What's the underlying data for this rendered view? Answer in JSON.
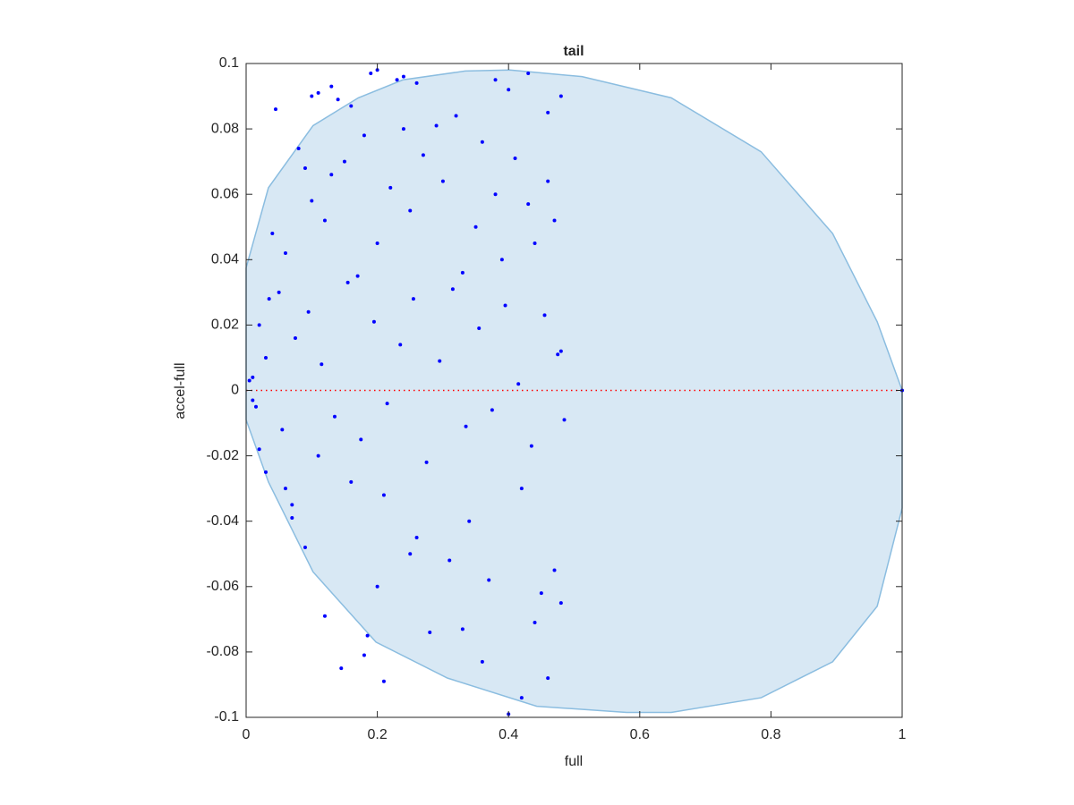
{
  "chart_data": {
    "type": "scatter",
    "title": "tail",
    "xlabel": "full",
    "ylabel": "accel-full",
    "xlim": [
      0,
      1
    ],
    "ylim": [
      -0.1,
      0.1
    ],
    "xticks": [
      0,
      0.2,
      0.4,
      0.6,
      0.8,
      1
    ],
    "yticks": [
      -0.1,
      -0.08,
      -0.06,
      -0.04,
      -0.02,
      0,
      0.02,
      0.04,
      0.06,
      0.08,
      0.1
    ],
    "grid": false,
    "region": {
      "color": "#d8e8f4",
      "edge": "#8bbde0",
      "x": [
        0,
        0.034,
        0.102,
        0.171,
        0.239,
        0.334,
        0.402,
        0.512,
        0.648,
        0.785,
        0.894,
        0.962,
        1,
        1,
        0.962,
        0.894,
        0.785,
        0.648,
        0.58,
        0.443,
        0.307,
        0.198,
        0.102,
        0.034,
        0
      ],
      "y": [
        0.0375,
        0.062,
        0.081,
        0.0895,
        0.095,
        0.0977,
        0.098,
        0.096,
        0.0895,
        0.073,
        0.048,
        0.021,
        0,
        -0.036,
        -0.066,
        -0.083,
        -0.094,
        -0.0985,
        -0.0985,
        -0.0966,
        -0.088,
        -0.077,
        -0.0555,
        -0.028,
        -0.009
      ]
    },
    "reference_line": {
      "y": 0,
      "color": "#ff0000"
    },
    "series": [
      {
        "color": "#0000ff",
        "x": [
          0.045,
          0.1,
          0.11,
          0.13,
          0.14,
          0.16,
          0.19,
          0.2,
          0.23,
          0.24,
          0.26,
          0.38,
          0.43,
          0.4,
          0.48,
          0.46,
          0.12,
          0.145,
          0.18,
          0.185,
          0.21,
          0.4,
          0.42,
          0.46,
          0.09,
          0.06,
          0.07,
          0.02,
          1,
          0.01,
          0.02,
          0.03,
          0.04,
          0.05,
          0.06,
          0.08,
          0.09,
          0.1,
          0.12,
          0.13,
          0.15,
          0.17,
          0.18,
          0.2,
          0.22,
          0.24,
          0.25,
          0.27,
          0.29,
          0.3,
          0.32,
          0.33,
          0.35,
          0.36,
          0.38,
          0.39,
          0.41,
          0.43,
          0.44,
          0.46,
          0.47,
          0.48,
          0.005,
          0.015,
          0.035,
          0.055,
          0.075,
          0.095,
          0.115,
          0.135,
          0.155,
          0.175,
          0.195,
          0.215,
          0.235,
          0.255,
          0.275,
          0.295,
          0.315,
          0.335,
          0.355,
          0.375,
          0.395,
          0.415,
          0.435,
          0.455,
          0.475,
          0.485,
          0.01,
          0.03,
          0.07,
          0.11,
          0.16,
          0.21,
          0.26,
          0.31,
          0.34,
          0.37,
          0.42,
          0.45,
          0.47,
          0.2,
          0.28,
          0.33,
          0.36,
          0.44,
          0.48,
          0.25
        ],
        "y": [
          0.086,
          0.09,
          0.091,
          0.093,
          0.089,
          0.087,
          0.097,
          0.098,
          0.095,
          0.096,
          0.094,
          0.095,
          0.097,
          0.092,
          0.09,
          0.085,
          -0.069,
          -0.085,
          -0.081,
          -0.075,
          -0.089,
          -0.099,
          -0.094,
          -0.088,
          -0.048,
          -0.03,
          -0.039,
          -0.018,
          0,
          0.004,
          0.02,
          0.01,
          0.048,
          0.03,
          0.042,
          0.074,
          0.068,
          0.058,
          0.052,
          0.066,
          0.07,
          0.035,
          0.078,
          0.045,
          0.062,
          0.08,
          0.055,
          0.072,
          0.081,
          0.064,
          0.084,
          0.036,
          0.05,
          0.076,
          0.06,
          0.04,
          0.071,
          0.057,
          0.045,
          0.064,
          0.052,
          0.012,
          0.003,
          -0.005,
          0.028,
          -0.012,
          0.016,
          0.024,
          0.008,
          -0.008,
          0.033,
          -0.015,
          0.021,
          -0.004,
          0.014,
          0.028,
          -0.022,
          0.009,
          0.031,
          -0.011,
          0.019,
          -0.006,
          0.026,
          0.002,
          -0.017,
          0.023,
          0.011,
          -0.009,
          -0.003,
          -0.025,
          -0.035,
          -0.02,
          -0.028,
          -0.032,
          -0.045,
          -0.052,
          -0.04,
          -0.058,
          -0.03,
          -0.062,
          -0.055,
          -0.06,
          -0.074,
          -0.073,
          -0.083,
          -0.071,
          -0.065,
          -0.05
        ]
      }
    ]
  }
}
